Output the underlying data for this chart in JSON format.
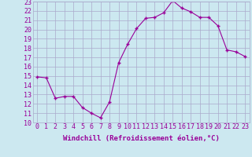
{
  "x": [
    0,
    1,
    2,
    3,
    4,
    5,
    6,
    7,
    8,
    9,
    10,
    11,
    12,
    13,
    14,
    15,
    16,
    17,
    18,
    19,
    20,
    21,
    22,
    23
  ],
  "y": [
    14.9,
    14.8,
    12.6,
    12.8,
    12.8,
    11.6,
    11.0,
    10.5,
    12.2,
    16.4,
    18.4,
    20.1,
    21.2,
    21.3,
    21.8,
    23.1,
    22.3,
    21.9,
    21.3,
    21.3,
    20.4,
    17.8,
    17.6,
    17.1
  ],
  "xlim": [
    -0.5,
    23.5
  ],
  "ylim": [
    10,
    23
  ],
  "yticks": [
    10,
    11,
    12,
    13,
    14,
    15,
    16,
    17,
    18,
    19,
    20,
    21,
    22,
    23
  ],
  "xticks": [
    0,
    1,
    2,
    3,
    4,
    5,
    6,
    7,
    8,
    9,
    10,
    11,
    12,
    13,
    14,
    15,
    16,
    17,
    18,
    19,
    20,
    21,
    22,
    23
  ],
  "xlabel": "Windchill (Refroidissement éolien,°C)",
  "line_color": "#990099",
  "marker": "+",
  "bg_color": "#cce8f0",
  "grid_color": "#aaaacc",
  "tick_color": "#990099",
  "label_color": "#990099",
  "font_size_xlabel": 6.5,
  "font_size_ticks": 6.0
}
